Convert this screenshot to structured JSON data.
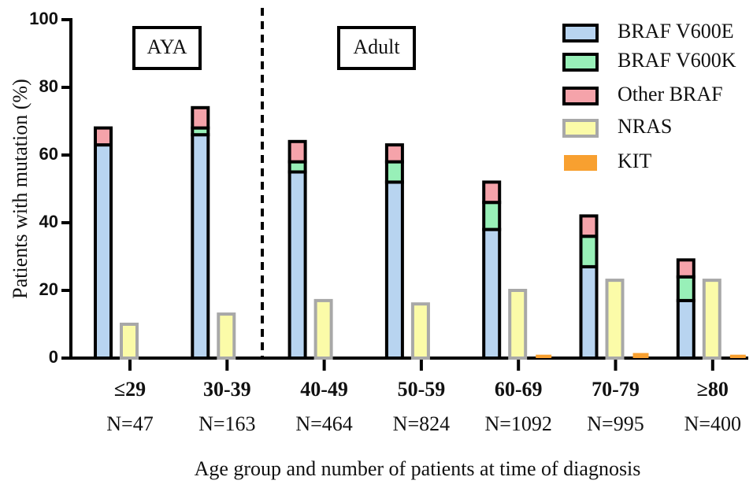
{
  "chart_data": {
    "type": "bar",
    "y_label": "Patients with mutation (%)",
    "x_label": "Age group and number of patients at time of diagnosis",
    "categories": [
      "≤29",
      "30-39",
      "40-49",
      "50-59",
      "60-69",
      "70-79",
      "≥80"
    ],
    "category_sublabels": [
      "N=47",
      "N=163",
      "N=464",
      "N=824",
      "N=1092",
      "N=995",
      "N=400"
    ],
    "annotations": [
      "AYA",
      "Adult"
    ],
    "series": [
      {
        "name": "BRAF V600E",
        "color": "#b8d4f0",
        "stroke": "#000",
        "stacked": true,
        "values": [
          63,
          66,
          55,
          52,
          38,
          27,
          17
        ]
      },
      {
        "name": "BRAF V600K",
        "color": "#98f0b8",
        "stroke": "#000",
        "stacked": true,
        "values": [
          0,
          2,
          3,
          6,
          8,
          9,
          7
        ]
      },
      {
        "name": "Other BRAF",
        "color": "#f5a3aa",
        "stroke": "#000",
        "stacked": true,
        "values": [
          5,
          6,
          6,
          5,
          6,
          6,
          5
        ]
      },
      {
        "name": "NRAS",
        "color": "#fbfba8",
        "stroke": "#a8a8a8",
        "stacked": false,
        "values": [
          10,
          13,
          17,
          16,
          20,
          23,
          23
        ]
      },
      {
        "name": "KIT",
        "color": "#f8a030",
        "stroke": "none",
        "stacked": false,
        "values": [
          0,
          0,
          0,
          0,
          1,
          1.5,
          1
        ]
      }
    ],
    "ylim": [
      0,
      100
    ],
    "yticks": [
      0,
      20,
      40,
      60,
      80,
      100
    ]
  }
}
